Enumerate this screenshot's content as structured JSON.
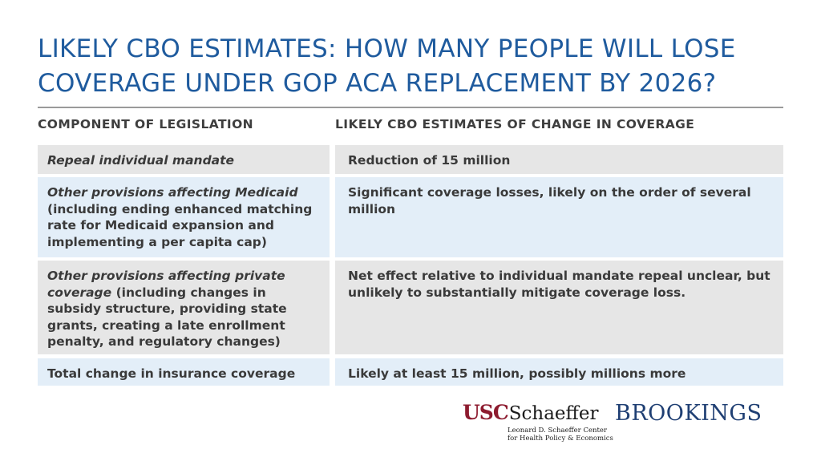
{
  "title": {
    "line1": "LIKELY CBO ESTIMATES: HOW MANY PEOPLE WILL LOSE",
    "line2": "COVERAGE UNDER GOP ACA REPLACEMENT BY 2026?"
  },
  "table": {
    "headers": {
      "col1": "COMPONENT OF LEGISLATION",
      "col2": "LIKELY CBO ESTIMATES OF CHANGE IN COVERAGE"
    },
    "rows": [
      {
        "component_italic": "Repeal individual mandate",
        "component_rest": "",
        "estimate": "Reduction of 15 million"
      },
      {
        "component_italic": "Other provisions affecting Medicaid",
        "component_rest": "(including ending enhanced matching rate for Medicaid expansion and implementing a per capita cap)",
        "estimate": "Significant coverage losses, likely on the order of several million"
      },
      {
        "component_italic": "Other provisions affecting private coverage",
        "component_rest": " (including changes in subsidy structure, providing state grants, creating a late enrollment penalty, and regulatory changes)",
        "estimate": "Net effect relative to individual mandate repeal unclear, but unlikely to substantially mitigate coverage loss."
      },
      {
        "component_italic": "",
        "component_rest": "Total change in insurance coverage",
        "estimate": "Likely at least 15 million, possibly millions more"
      }
    ]
  },
  "logos": {
    "usc_mark": "USC",
    "usc_name": "Schaeffer",
    "usc_sub1": "Leonard D. Schaeffer Center",
    "usc_sub2": "for Health Policy & Economics",
    "brookings": "BROOKINGS"
  },
  "colors": {
    "title": "#1f5b9e",
    "gray_row": "#e6e6e6",
    "blue_row": "#e3eef8",
    "usc_red": "#8d1b2f",
    "brookings_blue": "#1f3f73"
  }
}
